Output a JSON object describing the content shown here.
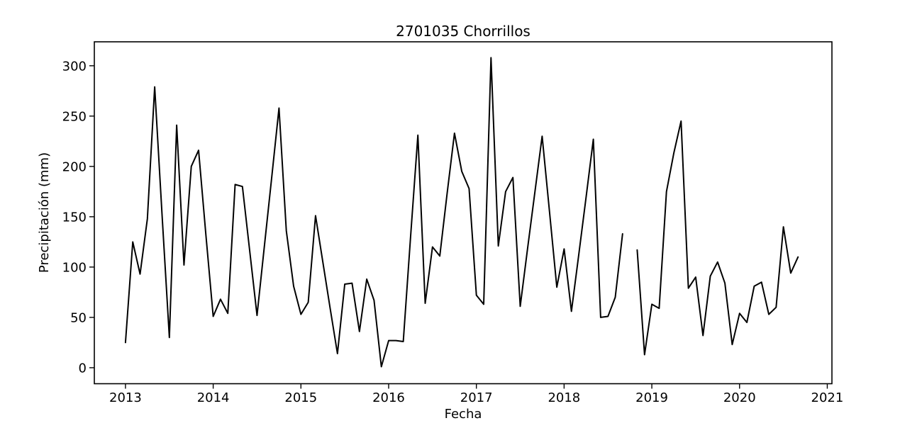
{
  "chart_data": {
    "type": "line",
    "title": "2701035 Chorrillos",
    "xlabel": "Fecha",
    "ylabel": "Precipitación (mm)",
    "x_ticks": [
      2013,
      2014,
      2015,
      2016,
      2017,
      2018,
      2019,
      2020,
      2021
    ],
    "y_ticks": [
      0,
      50,
      100,
      150,
      200,
      250,
      300
    ],
    "xlim": [
      2012.645,
      2021.053
    ],
    "ylim": [
      -15.9,
      323.8
    ],
    "grid": false,
    "legend": "none",
    "line_color": "#000000",
    "axis_color": "#000000",
    "background": "#ffffff",
    "series": [
      {
        "name": "Precipitación mensual (mm)",
        "x_start_year": 2013,
        "x_start_month": 1,
        "frequency": "monthly",
        "note": "null = missing month (gap in line at Oct 2018)",
        "values": [
          25,
          125,
          93,
          148,
          279,
          153,
          30,
          241,
          102,
          200,
          216,
          132,
          51,
          68,
          54,
          182,
          180,
          116,
          52,
          121,
          189,
          258,
          136,
          81,
          53,
          65,
          151,
          105,
          59,
          14,
          83,
          84,
          36,
          88,
          67,
          1,
          27,
          27,
          26,
          130,
          231,
          64,
          120,
          111,
          173,
          233,
          195,
          178,
          72,
          63,
          308,
          121,
          175,
          189,
          61,
          118,
          174,
          230,
          155,
          80,
          118,
          56,
          112,
          169,
          227,
          50,
          51,
          70,
          133,
          null,
          117,
          13,
          63,
          59,
          175,
          213,
          245,
          79,
          90,
          32,
          91,
          105,
          84,
          23,
          54,
          45,
          81,
          85,
          53,
          60,
          140,
          94,
          110
        ]
      }
    ]
  }
}
